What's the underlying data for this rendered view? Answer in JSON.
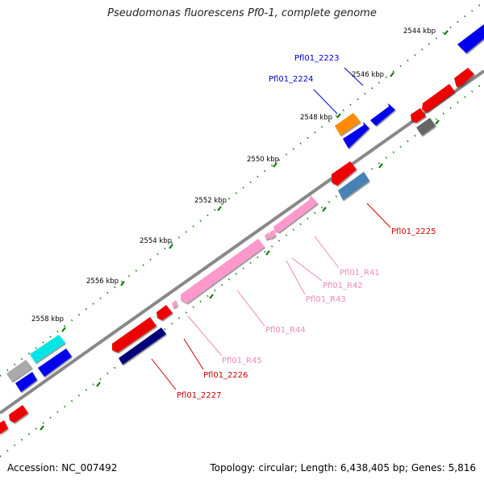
{
  "title": "Pseudomonas fluorescens Pf0-1, complete genome",
  "footer": {
    "accession": "Accession: NC_007492",
    "summary": "Topology: circular; Length: 6,438,405 bp; Genes: 5,816"
  },
  "ticks": [
    "2544 kbp",
    "2546 kbp",
    "2548 kbp",
    "2550 kbp",
    "2552 kbp",
    "2554 kbp",
    "2556 kbp",
    "2558 kbp"
  ],
  "gene_labels": {
    "pfl2223": "Pfl01_2223",
    "pfl2224": "Pfl01_2224",
    "pfl2225": "Pfl01_2225",
    "r41": "Pfl01_R41",
    "r42": "Pfl01_R42",
    "r43": "Pfl01_R43",
    "r44": "Pfl01_R44",
    "r45": "Pfl01_R45",
    "pfl2226": "Pfl01_2226",
    "pfl2227": "Pfl01_2227"
  },
  "colors": {
    "cds_forward": "#0000ee",
    "cds_reverse": "#ee0000",
    "rrna": "#ff99cc",
    "highlight_orange": "#ff8c00",
    "steel_blue": "#4682b4",
    "cyan": "#00e5e5",
    "navy": "#00007a",
    "gray": "#aaaaaa",
    "dark_gray": "#666666",
    "backbone": "#888888",
    "tick_green": "#0a7a0a",
    "label_blue": "#0000cc",
    "label_red": "#cc0000",
    "label_pink": "#ee88bb"
  }
}
